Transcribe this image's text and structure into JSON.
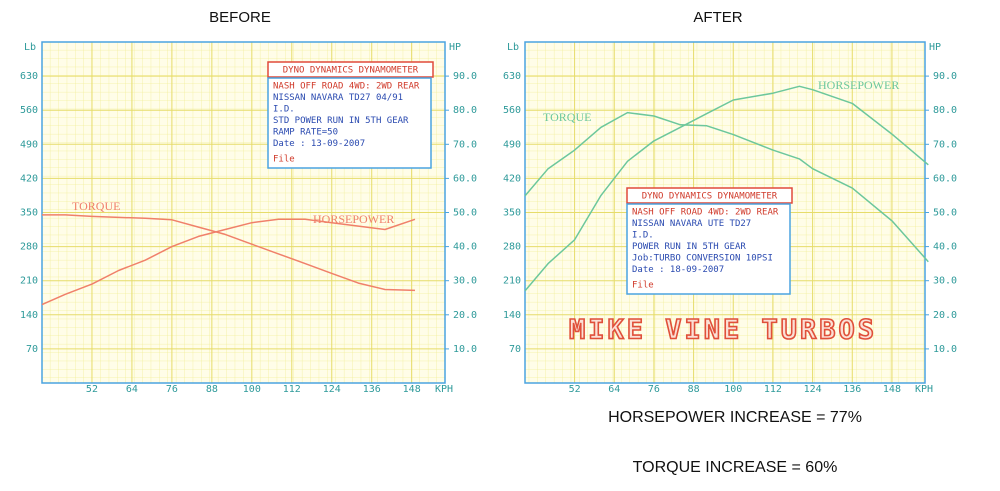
{
  "chart_data": [
    {
      "type": "line",
      "title": "BEFORE",
      "xlabel": "KPH",
      "ylabel": "Lb",
      "y2label": "HP",
      "x": [
        37,
        44,
        52,
        60,
        68,
        76,
        84,
        92,
        100,
        108,
        116,
        124,
        132,
        140,
        149
      ],
      "series": [
        {
          "name": "TORQUE",
          "color": "#f0806a",
          "values": [
            345,
            345,
            342,
            340,
            338,
            335,
            320,
            305,
            285,
            265,
            245,
            225,
            205,
            192,
            190
          ]
        },
        {
          "name": "HORSEPOWER",
          "color": "#f0806a",
          "axis": "y2",
          "values": [
            23,
            26,
            29,
            33,
            36,
            40,
            43,
            45,
            47,
            48,
            48,
            47,
            46,
            45,
            48
          ]
        }
      ],
      "xlim": [
        37,
        158
      ],
      "xticks": [
        52,
        64,
        76,
        88,
        100,
        112,
        124,
        136,
        148
      ],
      "ylim": [
        0,
        700
      ],
      "yticks": [
        70,
        140,
        210,
        280,
        350,
        420,
        490,
        560,
        630
      ],
      "y2lim": [
        0,
        100
      ],
      "y2ticks": [
        {
          "value": 10,
          "label": "10.0"
        },
        {
          "value": 20,
          "label": "20.0"
        },
        {
          "value": 30,
          "label": "30.0"
        },
        {
          "value": 40,
          "label": "40.0"
        },
        {
          "value": 50,
          "label": "50.0"
        },
        {
          "value": 60,
          "label": "60.0"
        },
        {
          "value": 70,
          "label": "70.0"
        },
        {
          "value": 80,
          "label": "80.0"
        },
        {
          "value": 90,
          "label": "90.0"
        }
      ],
      "grid": true,
      "info_box": {
        "title": "DYNO DYNAMICS DYNAMOMETER",
        "lines": [
          "NASH OFF ROAD 4WD: 2WD REAR",
          "NISSAN NAVARA TD27  04/91",
          "I.D.",
          "STD POWER RUN IN 5TH GEAR",
          "RAMP RATE=50",
          "Date      : 13-09-2007",
          "File"
        ]
      }
    },
    {
      "type": "line",
      "title": "AFTER",
      "xlabel": "KPH",
      "ylabel": "Lb",
      "y2label": "HP",
      "x": [
        37,
        44,
        52,
        60,
        68,
        76,
        84,
        92,
        100,
        112,
        120,
        124,
        136,
        148,
        159
      ],
      "series": [
        {
          "name": "TORQUE",
          "color": "#6cc79c",
          "values": [
            384,
            440,
            478,
            525,
            555,
            548,
            530,
            528,
            510,
            478,
            460,
            440,
            400,
            333,
            249
          ]
        },
        {
          "name": "HORSEPOWER",
          "color": "#6cc79c",
          "axis": "y2",
          "values": [
            27,
            35,
            42,
            55,
            65,
            71,
            75,
            79,
            83,
            85,
            87,
            86,
            82,
            73,
            64
          ]
        }
      ],
      "xlim": [
        37,
        158
      ],
      "xticks": [
        52,
        64,
        76,
        88,
        100,
        112,
        124,
        136,
        148
      ],
      "ylim": [
        0,
        700
      ],
      "yticks": [
        70,
        140,
        210,
        280,
        350,
        420,
        490,
        560,
        630
      ],
      "y2lim": [
        0,
        100
      ],
      "y2ticks": [
        {
          "value": 10,
          "label": "10.0"
        },
        {
          "value": 20,
          "label": "20.0"
        },
        {
          "value": 30,
          "label": "30.0"
        },
        {
          "value": 40,
          "label": "40.0"
        },
        {
          "value": 50,
          "label": "50.0"
        },
        {
          "value": 60,
          "label": "60.0"
        },
        {
          "value": 70,
          "label": "70.0"
        },
        {
          "value": 80,
          "label": "80.0"
        },
        {
          "value": 90,
          "label": "90.0"
        }
      ],
      "grid": true,
      "info_box": {
        "title": "DYNO DYNAMICS DYNAMOMETER",
        "lines": [
          "NASH OFF ROAD 4WD: 2WD REAR",
          "NISSAN NAVARA UTE TD27",
          "I.D.",
          "POWER RUN IN 5TH GEAR",
          "Job:TURBO CONVERSION 10PSI",
          "Date      : 18-09-2007",
          "File"
        ]
      },
      "watermark": "MIKE VINE TURBOS",
      "annotations": [
        "HORSEPOWER INCREASE = 77%",
        "TORQUE INCREASE = 60%"
      ]
    }
  ]
}
